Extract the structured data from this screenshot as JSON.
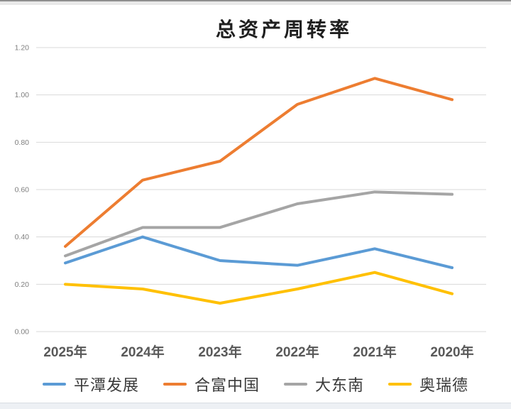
{
  "chart_data": {
    "type": "line",
    "title": "总资产周转率",
    "categories": [
      "2025年",
      "2024年",
      "2023年",
      "2022年",
      "2021年",
      "2020年"
    ],
    "series": [
      {
        "name": "平潭发展",
        "color": "#5B9BD5",
        "values": [
          0.29,
          0.4,
          0.3,
          0.28,
          0.35,
          0.27
        ]
      },
      {
        "name": "合富中国",
        "color": "#ED7D31",
        "values": [
          0.36,
          0.64,
          0.72,
          0.96,
          1.07,
          0.98
        ]
      },
      {
        "name": "大东南",
        "color": "#A5A5A5",
        "values": [
          0.32,
          0.44,
          0.44,
          0.54,
          0.59,
          0.58
        ]
      },
      {
        "name": "奥瑞德",
        "color": "#FFC000",
        "values": [
          0.2,
          0.18,
          0.12,
          0.18,
          0.25,
          0.16
        ]
      }
    ],
    "y_axis": {
      "min": 0,
      "max": 1.2,
      "step": 0.2,
      "tick_labels": [
        "0.00",
        "0.20",
        "0.40",
        "0.60",
        "0.80",
        "1.00",
        "1.20"
      ]
    },
    "grid": true,
    "legend_position": "bottom",
    "colors": {
      "gridline": "#D9D9D9",
      "y_tick_text": "#7f7f7f",
      "x_tick_text": "#595959",
      "title_text": "#1f1f1f"
    }
  }
}
